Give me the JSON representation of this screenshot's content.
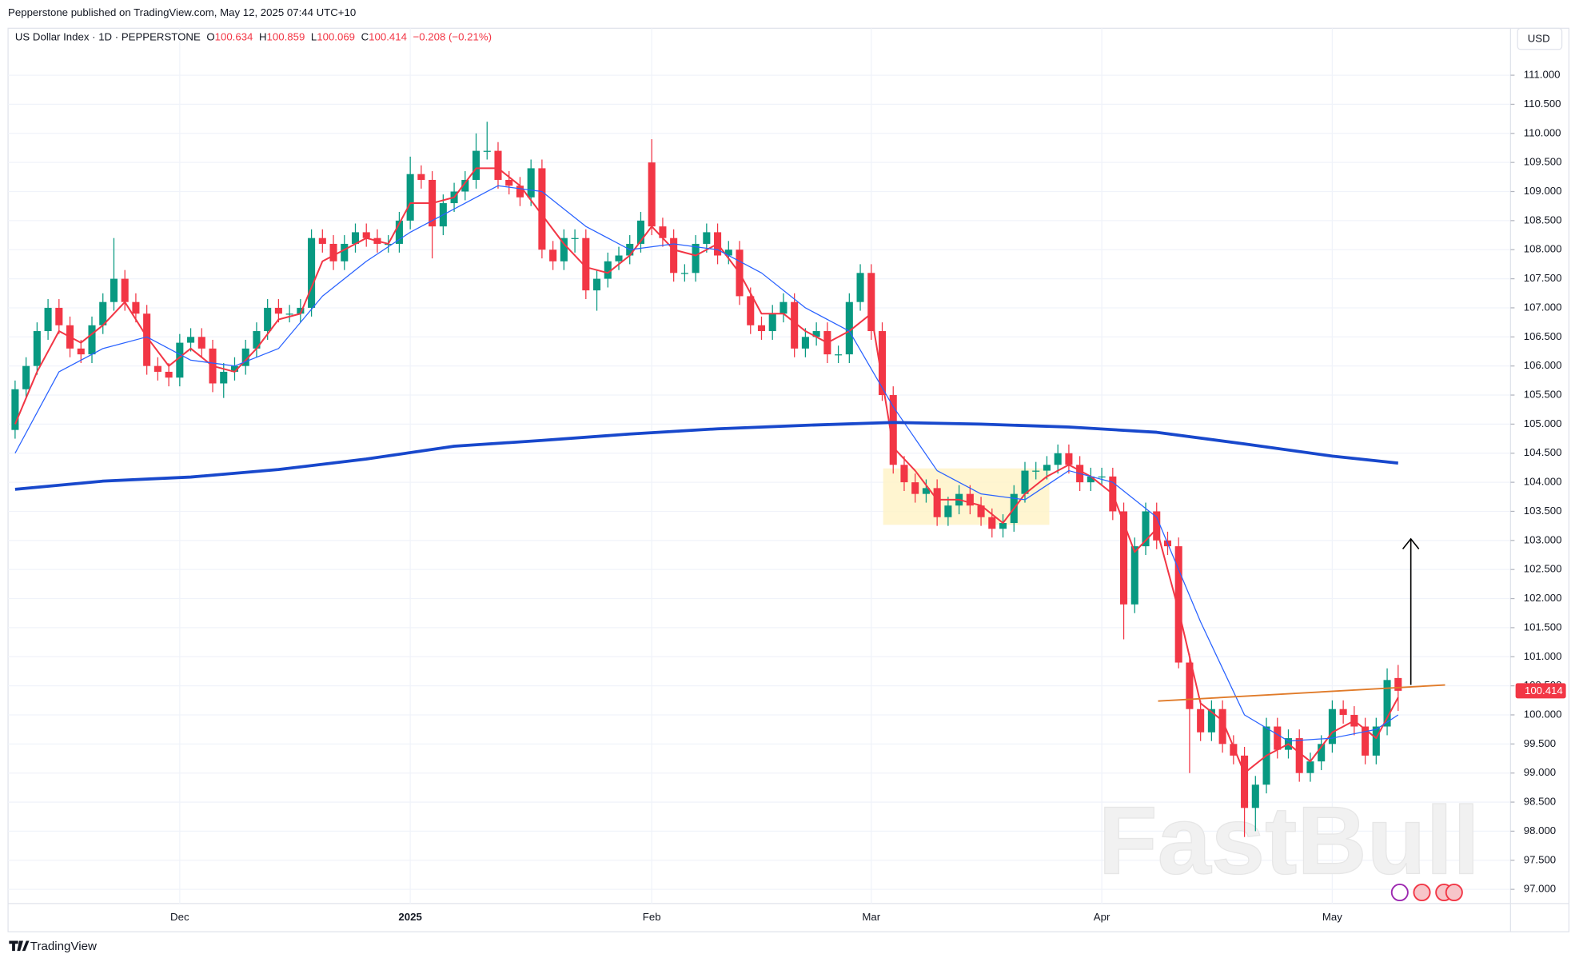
{
  "header": {
    "publisher": "Pepperstone published on TradingView.com, May 12, 2025 07:44 UTC+10",
    "symbol": "US Dollar Index · 1D · PEPPERSTONE",
    "open_label": "O",
    "high_label": "H",
    "low_label": "L",
    "close_label": "C",
    "change": "−0.208 (−0.21%)",
    "currency": "USD"
  },
  "footer": {
    "brand": "TradingView"
  },
  "watermark": "FastBull",
  "chart_data": {
    "type": "candlestick",
    "up_color": "#089981",
    "down_color": "#f23645",
    "grid": true,
    "categories": [
      null,
      null,
      null,
      null,
      null,
      null,
      null,
      null,
      null,
      null,
      null,
      null,
      null,
      null,
      null,
      "Dec",
      null,
      null,
      null,
      null,
      null,
      null,
      null,
      null,
      null,
      null,
      null,
      null,
      null,
      null,
      null,
      null,
      null,
      null,
      null,
      null,
      "2025",
      null,
      null,
      null,
      null,
      null,
      null,
      null,
      null,
      null,
      null,
      null,
      null,
      null,
      null,
      null,
      null,
      null,
      null,
      null,
      null,
      null,
      "Feb",
      null,
      null,
      null,
      null,
      null,
      null,
      null,
      null,
      null,
      null,
      null,
      null,
      null,
      null,
      null,
      null,
      null,
      null,
      null,
      "Mar",
      null,
      null,
      null,
      null,
      null,
      null,
      null,
      null,
      null,
      null,
      null,
      null,
      null,
      null,
      null,
      null,
      null,
      null,
      null,
      null,
      "Apr",
      null,
      null,
      null,
      null,
      null,
      null,
      null,
      null,
      null,
      null,
      null,
      null,
      null,
      null,
      null,
      null,
      null,
      null,
      null,
      null,
      "May",
      null,
      null,
      null,
      null,
      null,
      null
    ],
    "ohlc": [
      [
        104.9,
        105.75,
        104.75,
        105.6
      ],
      [
        105.6,
        106.15,
        105.45,
        106.0
      ],
      [
        106.0,
        106.75,
        105.85,
        106.6
      ],
      [
        106.6,
        107.15,
        106.45,
        107.0
      ],
      [
        107.0,
        107.15,
        106.55,
        106.7
      ],
      [
        106.7,
        106.85,
        106.15,
        106.3
      ],
      [
        106.3,
        106.45,
        106.05,
        106.2
      ],
      [
        106.2,
        106.85,
        106.05,
        106.7
      ],
      [
        106.7,
        107.25,
        106.55,
        107.1
      ],
      [
        107.1,
        108.2,
        106.95,
        107.5
      ],
      [
        107.5,
        107.65,
        106.95,
        107.1
      ],
      [
        107.1,
        107.25,
        106.75,
        106.9
      ],
      [
        106.9,
        107.05,
        105.85,
        106.0
      ],
      [
        106.0,
        106.15,
        105.75,
        105.9
      ],
      [
        105.9,
        106.05,
        105.65,
        105.8
      ],
      [
        105.8,
        106.55,
        105.65,
        106.4
      ],
      [
        106.4,
        106.65,
        106.25,
        106.5
      ],
      [
        106.5,
        106.65,
        106.15,
        106.3
      ],
      [
        106.3,
        106.45,
        105.55,
        105.7
      ],
      [
        105.7,
        106.05,
        105.45,
        105.9
      ],
      [
        105.9,
        106.15,
        105.75,
        106.0
      ],
      [
        106.0,
        106.45,
        105.85,
        106.3
      ],
      [
        106.3,
        106.75,
        106.15,
        106.6
      ],
      [
        106.6,
        107.15,
        106.45,
        107.0
      ],
      [
        107.0,
        107.15,
        106.75,
        106.9
      ],
      [
        106.9,
        107.05,
        106.75,
        106.9
      ],
      [
        106.9,
        107.15,
        106.75,
        107.0
      ],
      [
        107.0,
        108.35,
        106.85,
        108.2
      ],
      [
        108.2,
        108.35,
        107.95,
        108.1
      ],
      [
        108.1,
        108.25,
        107.65,
        107.8
      ],
      [
        107.8,
        108.25,
        107.65,
        108.1
      ],
      [
        108.1,
        108.45,
        107.95,
        108.3
      ],
      [
        108.3,
        108.45,
        108.05,
        108.2
      ],
      [
        108.2,
        108.35,
        107.95,
        108.1
      ],
      [
        108.1,
        108.25,
        107.95,
        108.1
      ],
      [
        108.1,
        108.65,
        107.95,
        108.5
      ],
      [
        108.5,
        109.6,
        108.35,
        109.3
      ],
      [
        109.3,
        109.45,
        109.05,
        109.2
      ],
      [
        109.2,
        109.35,
        107.85,
        108.4
      ],
      [
        108.4,
        108.95,
        108.25,
        108.8
      ],
      [
        108.8,
        109.15,
        108.65,
        109.0
      ],
      [
        109.0,
        109.35,
        108.85,
        109.2
      ],
      [
        109.2,
        110.0,
        109.05,
        109.7
      ],
      [
        109.7,
        110.2,
        109.55,
        109.7
      ],
      [
        109.7,
        109.85,
        109.05,
        109.2
      ],
      [
        109.2,
        109.35,
        108.95,
        109.1
      ],
      [
        109.1,
        109.25,
        108.75,
        108.9
      ],
      [
        108.9,
        109.55,
        108.75,
        109.4
      ],
      [
        109.4,
        109.55,
        107.85,
        108.0
      ],
      [
        108.0,
        108.15,
        107.65,
        107.8
      ],
      [
        107.8,
        108.35,
        107.65,
        108.2
      ],
      [
        108.2,
        108.35,
        107.95,
        108.2
      ],
      [
        108.2,
        108.35,
        107.15,
        107.3
      ],
      [
        107.3,
        107.65,
        106.95,
        107.5
      ],
      [
        107.5,
        107.95,
        107.35,
        107.8
      ],
      [
        107.8,
        108.05,
        107.65,
        107.9
      ],
      [
        107.9,
        108.25,
        107.75,
        108.1
      ],
      [
        108.1,
        108.65,
        107.95,
        108.5
      ],
      [
        109.5,
        109.9,
        108.25,
        108.4
      ],
      [
        108.4,
        108.55,
        108.05,
        108.2
      ],
      [
        108.2,
        108.35,
        107.45,
        107.6
      ],
      [
        107.6,
        107.75,
        107.45,
        107.6
      ],
      [
        107.6,
        108.25,
        107.45,
        108.1
      ],
      [
        108.1,
        108.45,
        107.95,
        108.3
      ],
      [
        108.3,
        108.45,
        107.75,
        107.9
      ],
      [
        107.9,
        108.15,
        107.75,
        108.0
      ],
      [
        108.0,
        108.15,
        107.05,
        107.2
      ],
      [
        107.2,
        107.35,
        106.55,
        106.7
      ],
      [
        106.7,
        106.85,
        106.45,
        106.6
      ],
      [
        106.6,
        107.05,
        106.45,
        106.9
      ],
      [
        106.9,
        107.25,
        106.75,
        107.1
      ],
      [
        107.1,
        107.25,
        106.15,
        106.3
      ],
      [
        106.3,
        106.65,
        106.15,
        106.5
      ],
      [
        106.5,
        106.75,
        106.35,
        106.6
      ],
      [
        106.6,
        106.75,
        106.05,
        106.2
      ],
      [
        106.2,
        106.35,
        106.05,
        106.2
      ],
      [
        106.2,
        107.25,
        106.05,
        107.1
      ],
      [
        107.1,
        107.75,
        106.95,
        107.6
      ],
      [
        107.6,
        107.75,
        106.45,
        106.6
      ],
      [
        106.6,
        106.75,
        105.4,
        105.5
      ],
      [
        105.5,
        105.65,
        104.15,
        104.3
      ],
      [
        104.3,
        104.45,
        103.85,
        104.0
      ],
      [
        104.0,
        104.15,
        103.65,
        103.8
      ],
      [
        103.8,
        104.05,
        103.65,
        103.9
      ],
      [
        103.9,
        104.05,
        103.25,
        103.4
      ],
      [
        103.4,
        103.75,
        103.25,
        103.6
      ],
      [
        103.6,
        103.95,
        103.45,
        103.8
      ],
      [
        103.8,
        103.95,
        103.45,
        103.6
      ],
      [
        103.6,
        103.75,
        103.25,
        103.4
      ],
      [
        103.4,
        103.55,
        103.05,
        103.2
      ],
      [
        103.2,
        103.45,
        103.05,
        103.3
      ],
      [
        103.3,
        103.95,
        103.15,
        103.8
      ],
      [
        103.8,
        104.35,
        103.65,
        104.2
      ],
      [
        104.2,
        104.35,
        104.05,
        104.2
      ],
      [
        104.2,
        104.45,
        104.05,
        104.3
      ],
      [
        104.3,
        104.65,
        104.15,
        104.5
      ],
      [
        104.5,
        104.65,
        104.15,
        104.3
      ],
      [
        104.3,
        104.45,
        103.85,
        104.0
      ],
      [
        104.0,
        104.25,
        103.85,
        104.1
      ],
      [
        104.1,
        104.25,
        103.95,
        104.1
      ],
      [
        104.1,
        104.25,
        103.35,
        103.5
      ],
      [
        103.5,
        103.65,
        101.3,
        101.9
      ],
      [
        101.9,
        103.05,
        101.75,
        102.9
      ],
      [
        102.9,
        103.65,
        102.75,
        103.5
      ],
      [
        103.5,
        103.65,
        102.85,
        103.0
      ],
      [
        103.0,
        103.15,
        102.75,
        102.9
      ],
      [
        102.9,
        103.05,
        100.8,
        100.9
      ],
      [
        100.9,
        101.05,
        99.0,
        100.1
      ],
      [
        100.1,
        100.25,
        99.55,
        99.7
      ],
      [
        99.7,
        100.25,
        99.55,
        100.1
      ],
      [
        100.1,
        100.25,
        99.35,
        99.5
      ],
      [
        99.5,
        99.65,
        99.15,
        99.3
      ],
      [
        99.3,
        99.45,
        97.9,
        98.4
      ],
      [
        98.4,
        98.95,
        98.0,
        98.8
      ],
      [
        98.8,
        99.95,
        98.65,
        99.8
      ],
      [
        99.8,
        99.95,
        99.25,
        99.4
      ],
      [
        99.4,
        99.75,
        99.25,
        99.6
      ],
      [
        99.6,
        99.75,
        98.85,
        99.0
      ],
      [
        99.0,
        99.35,
        98.85,
        99.2
      ],
      [
        99.2,
        99.65,
        99.05,
        99.5
      ],
      [
        99.5,
        100.25,
        99.35,
        100.1
      ],
      [
        100.1,
        100.25,
        99.85,
        100.0
      ],
      [
        100.0,
        100.15,
        99.65,
        99.8
      ],
      [
        99.8,
        99.95,
        99.15,
        99.3
      ],
      [
        99.3,
        99.95,
        99.15,
        99.8
      ],
      [
        99.8,
        100.8,
        99.65,
        100.6
      ],
      [
        100.634,
        100.859,
        100.069,
        100.414
      ]
    ],
    "lines": [
      {
        "color": "#f23645",
        "width": 1.6,
        "x": [
          0,
          2,
          4,
          6,
          8,
          10,
          12,
          14,
          16,
          18,
          20,
          22,
          24,
          26,
          28,
          30,
          32,
          34,
          36,
          38,
          40,
          42,
          44,
          46,
          48,
          50,
          52,
          54,
          56,
          58,
          60,
          62,
          64,
          66,
          68,
          70,
          72,
          74,
          76,
          78,
          80,
          82,
          84,
          86,
          88,
          90,
          92,
          94,
          96,
          98,
          100,
          102,
          104,
          106,
          108,
          110,
          112,
          114,
          116,
          118,
          120,
          122,
          124,
          126
        ],
        "values": [
          105.0,
          105.9,
          106.6,
          106.4,
          106.7,
          107.1,
          106.5,
          106.0,
          106.3,
          106.0,
          105.9,
          106.3,
          106.8,
          106.9,
          107.8,
          108.0,
          108.2,
          108.1,
          108.8,
          108.8,
          108.9,
          109.4,
          109.4,
          109.1,
          108.6,
          108.1,
          107.7,
          107.6,
          107.9,
          108.4,
          108.0,
          107.9,
          108.1,
          107.6,
          106.9,
          106.9,
          106.6,
          106.4,
          106.6,
          106.9,
          104.6,
          104.2,
          103.7,
          103.7,
          103.6,
          103.3,
          103.8,
          104.1,
          104.3,
          104.1,
          103.8,
          102.8,
          103.2,
          101.8,
          100.2,
          99.9,
          99.0,
          99.3,
          99.5,
          99.2,
          99.7,
          99.9,
          99.6,
          100.3
        ]
      },
      {
        "color": "#2962ff",
        "width": 1,
        "x": [
          0,
          4,
          8,
          12,
          16,
          20,
          24,
          28,
          32,
          36,
          40,
          44,
          48,
          52,
          56,
          60,
          64,
          68,
          72,
          76,
          80,
          84,
          88,
          92,
          96,
          100,
          104,
          108,
          112,
          116,
          120,
          124,
          126
        ],
        "values": [
          104.5,
          105.9,
          106.3,
          106.5,
          106.1,
          106.0,
          106.3,
          107.2,
          107.8,
          108.3,
          108.7,
          109.1,
          109.0,
          108.4,
          108.0,
          108.1,
          108.0,
          107.6,
          107.0,
          106.6,
          105.3,
          104.2,
          103.8,
          103.7,
          104.2,
          104.0,
          103.4,
          101.6,
          100.0,
          99.55,
          99.6,
          99.75,
          100.0
        ]
      },
      {
        "color": "#1848cc",
        "width": 3,
        "x": [
          0,
          8,
          16,
          24,
          32,
          40,
          48,
          56,
          64,
          72,
          80,
          88,
          96,
          104,
          112,
          120,
          126
        ],
        "values": [
          103.88,
          104.02,
          104.09,
          104.22,
          104.4,
          104.62,
          104.72,
          104.83,
          104.92,
          104.98,
          105.03,
          105.0,
          104.95,
          104.86,
          104.66,
          104.45,
          104.33
        ]
      }
    ],
    "ylim": [
      96.6,
      111.6
    ],
    "yticks": [
      {
        "value": 97,
        "label": "97.000"
      },
      {
        "value": 97.5,
        "label": "97.500"
      },
      {
        "value": 98,
        "label": "98.000"
      },
      {
        "value": 98.5,
        "label": "98.500"
      },
      {
        "value": 99,
        "label": "99.000"
      },
      {
        "value": 99.5,
        "label": "99.500"
      },
      {
        "value": 100,
        "label": "100.000"
      },
      {
        "value": 100.5,
        "label": "100.500"
      },
      {
        "value": 101,
        "label": "101.000"
      },
      {
        "value": 101.5,
        "label": "101.500"
      },
      {
        "value": 102,
        "label": "102.000"
      },
      {
        "value": 102.5,
        "label": "102.500"
      },
      {
        "value": 103,
        "label": "103.000"
      },
      {
        "value": 103.5,
        "label": "103.500"
      },
      {
        "value": 104,
        "label": "104.000"
      },
      {
        "value": 104.5,
        "label": "104.500"
      },
      {
        "value": 105,
        "label": "105.000"
      },
      {
        "value": 105.5,
        "label": "105.500"
      },
      {
        "value": 106,
        "label": "106.000"
      },
      {
        "value": 106.5,
        "label": "106.500"
      },
      {
        "value": 107,
        "label": "107.000"
      },
      {
        "value": 107.5,
        "label": "107.500"
      },
      {
        "value": 108,
        "label": "108.000"
      },
      {
        "value": 108.5,
        "label": "108.500"
      },
      {
        "value": 109,
        "label": "109.000"
      },
      {
        "value": 109.5,
        "label": "109.500"
      },
      {
        "value": 110,
        "label": "110.000"
      },
      {
        "value": 110.5,
        "label": "110.500"
      },
      {
        "value": 111,
        "label": "111.000"
      }
    ]
  }
}
